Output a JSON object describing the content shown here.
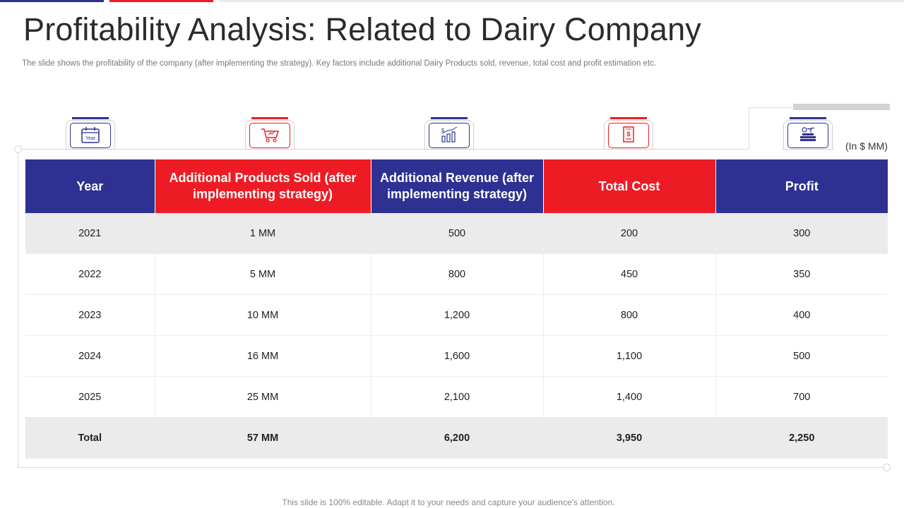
{
  "title": "Profitability Analysis: Related to Dairy Company",
  "subtitle": "The slide shows the profitability of the company (after implementing the strategy). Key factors include additional Dairy Products sold, revenue, total cost and profit estimation etc.",
  "unit_note": "(In $ MM)",
  "icons": [
    {
      "name": "calendar-icon",
      "label": "Year"
    },
    {
      "name": "shopping-cart-icon"
    },
    {
      "name": "revenue-chart-icon",
      "symbol": "$"
    },
    {
      "name": "invoice-icon",
      "symbol": "$"
    },
    {
      "name": "money-growth-icon"
    }
  ],
  "table": {
    "headers": [
      "Year",
      "Additional Products Sold (after implementing strategy)",
      "Additional Revenue (after implementing strategy)",
      "Total Cost",
      "Profit"
    ],
    "rows": [
      [
        "2021",
        "1 MM",
        "500",
        "200",
        "300"
      ],
      [
        "2022",
        "5 MM",
        "800",
        "450",
        "350"
      ],
      [
        "2023",
        "10 MM",
        "1,200",
        "800",
        "400"
      ],
      [
        "2024",
        "16 MM",
        "1,600",
        "1,100",
        "500"
      ],
      [
        "2025",
        "25 MM",
        "2,100",
        "1,400",
        "700"
      ]
    ],
    "total": [
      "Total",
      "57 MM",
      "6,200",
      "3,950",
      "2,250"
    ]
  },
  "footer": "This slide is 100% editable. Adapt it to your needs and capture your audience's attention.",
  "colors": {
    "blue": "#2e3192",
    "red": "#ed1c24",
    "shade": "#ebebeb"
  }
}
